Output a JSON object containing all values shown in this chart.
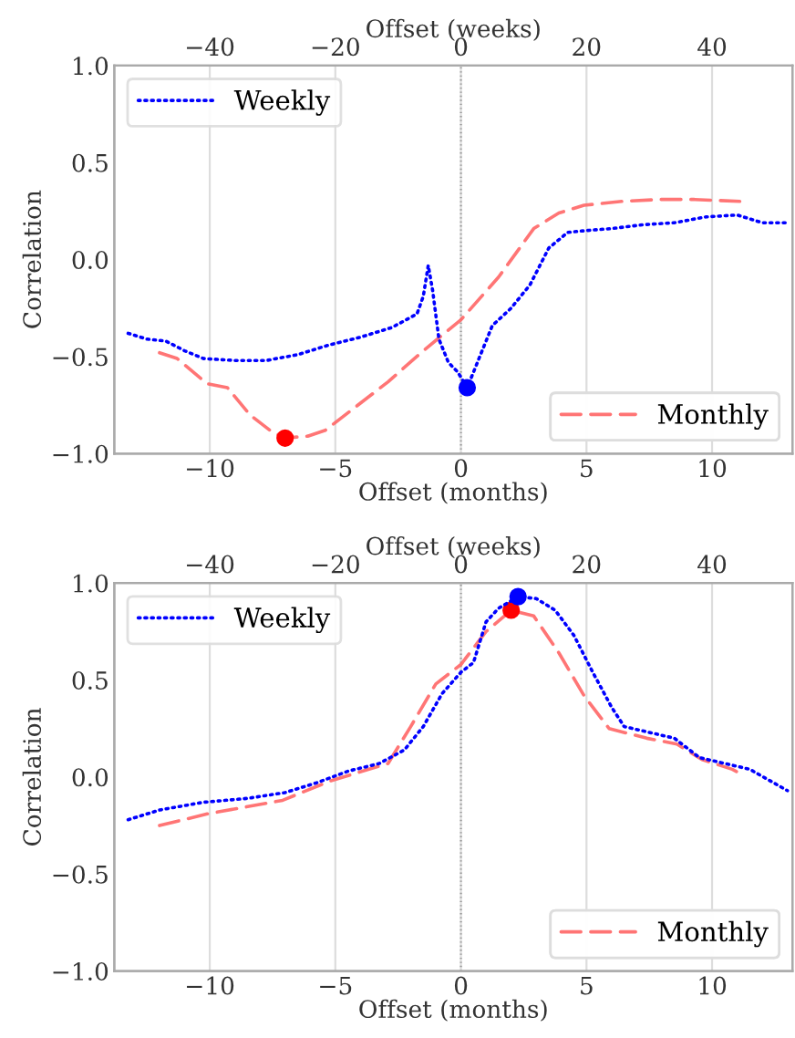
{
  "chart_data": [
    {
      "type": "line",
      "xlabel": "Offset (months)",
      "x2label": "Offset (weeks)",
      "ylabel": "Correlation",
      "xlim": [
        -13.8,
        13.2
      ],
      "x2lim": [
        -55.2,
        52.8
      ],
      "ylim": [
        -1.0,
        1.0
      ],
      "xticks": [
        -10,
        -5,
        0,
        5,
        10
      ],
      "x2ticks": [
        -40,
        -20,
        0,
        20,
        40
      ],
      "yticks": [
        {
          "value": -1.0,
          "label": "−1.0"
        },
        {
          "value": -0.5,
          "label": "−0.5"
        },
        {
          "value": 0.0,
          "label": "0.0"
        },
        {
          "value": 0.5,
          "label": "0.5"
        },
        {
          "value": 1.0,
          "label": "1.0"
        }
      ],
      "grid": "x",
      "legend": [
        "top left",
        "bottom right"
      ],
      "ref_lines": [
        {
          "axis": "x",
          "value": 0,
          "color": "#999999",
          "line_style": "dotted"
        }
      ],
      "series": [
        {
          "name": "Weekly",
          "axis": "x2",
          "color": "#0000ff",
          "line_style": "dotted",
          "x": [
            -53,
            -50,
            -47,
            -44,
            -41,
            -36,
            -31,
            -26,
            -21,
            -16,
            -11,
            -7,
            -6,
            -5.2,
            -4.5,
            -3.5,
            -2,
            -0.5,
            1,
            3,
            5,
            8,
            11,
            14,
            17,
            20,
            24,
            29,
            34,
            39,
            44,
            48,
            52
          ],
          "values": [
            -0.38,
            -0.41,
            -0.42,
            -0.47,
            -0.51,
            -0.52,
            -0.52,
            -0.49,
            -0.44,
            -0.4,
            -0.35,
            -0.28,
            -0.19,
            -0.03,
            -0.16,
            -0.41,
            -0.53,
            -0.58,
            -0.66,
            -0.5,
            -0.34,
            -0.25,
            -0.13,
            0.06,
            0.14,
            0.15,
            0.16,
            0.18,
            0.19,
            0.22,
            0.23,
            0.19,
            0.19
          ]
        },
        {
          "name": "Monthly",
          "color": "#ff6666",
          "line_style": "dashed",
          "x": [
            -12.0,
            -11.3,
            -10.1,
            -9.3,
            -8.4,
            -7.6,
            -7.0,
            -6.1,
            -5.4,
            -4.4,
            -2.9,
            -1.5,
            0,
            1.5,
            2.9,
            3.9,
            4.9,
            6.4,
            7.9,
            9.3,
            11.1
          ],
          "values": [
            -0.48,
            -0.51,
            -0.64,
            -0.66,
            -0.8,
            -0.88,
            -0.92,
            -0.91,
            -0.88,
            -0.78,
            -0.63,
            -0.47,
            -0.31,
            -0.09,
            0.16,
            0.24,
            0.28,
            0.3,
            0.31,
            0.31,
            0.3
          ]
        },
        {
          "type": "scatter",
          "color": "#ff0000",
          "marker": "circle",
          "x": [
            -7.0
          ],
          "values": [
            -0.92
          ]
        },
        {
          "type": "scatter",
          "axis": "x2",
          "color": "#0000ff",
          "marker": "circle",
          "x": [
            1
          ],
          "values": [
            -0.66
          ]
        }
      ]
    },
    {
      "type": "line",
      "xlabel": "Offset (months)",
      "x2label": "Offset (weeks)",
      "ylabel": "Correlation",
      "xlim": [
        -13.8,
        13.2
      ],
      "x2lim": [
        -55.2,
        52.8
      ],
      "ylim": [
        -1.0,
        1.0
      ],
      "xticks": [
        -10,
        -5,
        0,
        5,
        10
      ],
      "x2ticks": [
        -40,
        -20,
        0,
        20,
        40
      ],
      "yticks": [
        {
          "value": -1.0,
          "label": "−1.0"
        },
        {
          "value": -0.5,
          "label": "−0.5"
        },
        {
          "value": 0.0,
          "label": "0.0"
        },
        {
          "value": 0.5,
          "label": "0.5"
        },
        {
          "value": 1.0,
          "label": "1.0"
        }
      ],
      "grid": "x",
      "legend": [
        "top left",
        "bottom right"
      ],
      "ref_lines": [
        {
          "axis": "x",
          "value": 0,
          "color": "#999999",
          "line_style": "dotted"
        }
      ],
      "series": [
        {
          "name": "Weekly",
          "axis": "x2",
          "color": "#0000ff",
          "line_style": "dotted",
          "x": [
            -53,
            -48,
            -41,
            -34,
            -28,
            -23,
            -18,
            -13,
            -9,
            -6,
            -3,
            0,
            2,
            4,
            6,
            9.1,
            12,
            15,
            18,
            21,
            24,
            26,
            30,
            34,
            38,
            42,
            46,
            52
          ],
          "values": [
            -0.22,
            -0.17,
            -0.13,
            -0.11,
            -0.08,
            -0.03,
            0.03,
            0.07,
            0.14,
            0.26,
            0.43,
            0.54,
            0.59,
            0.8,
            0.87,
            0.93,
            0.92,
            0.86,
            0.73,
            0.54,
            0.36,
            0.26,
            0.23,
            0.2,
            0.1,
            0.07,
            0.04,
            -0.07
          ]
        },
        {
          "name": "Monthly",
          "color": "#ff6666",
          "line_style": "dashed",
          "x": [
            -12.0,
            -10.1,
            -7.1,
            -5.2,
            -2.9,
            -2.0,
            -1.0,
            0,
            1.0,
            2.0,
            2.9,
            3.9,
            4.9,
            5.9,
            7.4,
            8.6,
            9.6,
            10.8,
            11.1
          ],
          "values": [
            -0.25,
            -0.19,
            -0.12,
            -0.02,
            0.07,
            0.26,
            0.48,
            0.58,
            0.75,
            0.86,
            0.83,
            0.64,
            0.42,
            0.25,
            0.2,
            0.17,
            0.09,
            0.04,
            0.02
          ]
        },
        {
          "type": "scatter",
          "color": "#ff0000",
          "marker": "circle",
          "x": [
            2.0
          ],
          "values": [
            0.86
          ]
        },
        {
          "type": "scatter",
          "axis": "x2",
          "color": "#0000ff",
          "marker": "circle",
          "x": [
            9.1
          ],
          "values": [
            0.93
          ]
        }
      ]
    }
  ]
}
